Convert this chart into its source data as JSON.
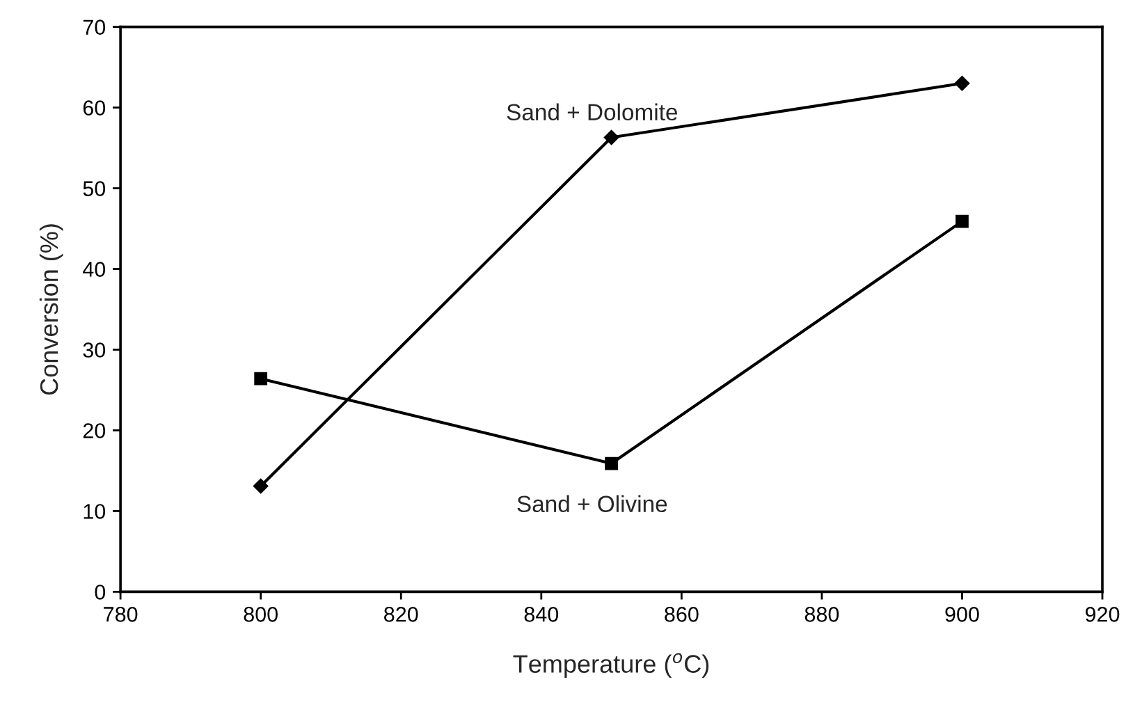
{
  "chart_data": {
    "type": "line",
    "xlabel": "Temperature ($^{o}$C)",
    "ylabel": "Conversion (%)",
    "x": [
      800,
      850,
      900
    ],
    "series": [
      {
        "name": "Sand + Dolomite",
        "color": "#000000",
        "marker": "diamond",
        "values": [
          13.1,
          56.3,
          63.0
        ]
      },
      {
        "name": "Sand + Olivine",
        "color": "#000000",
        "marker": "square",
        "values": [
          26.4,
          15.9,
          45.9
        ]
      }
    ],
    "xlim": [
      780,
      920
    ],
    "xticks": [
      780,
      800,
      820,
      840,
      860,
      880,
      900,
      920
    ],
    "ylim": [
      0,
      70
    ],
    "yticks": [
      0,
      10,
      20,
      30,
      40,
      50,
      60,
      70
    ],
    "grid": false,
    "legend": false,
    "line_style": "solid"
  }
}
